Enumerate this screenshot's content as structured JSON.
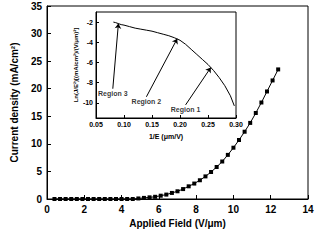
{
  "chart_data": [
    {
      "type": "line",
      "xlabel": "Applied Field (V/μm)",
      "ylabel": "Current density (mA/cm²)",
      "x": [
        0.4,
        0.7,
        1.0,
        1.3,
        1.6,
        1.9,
        2.2,
        2.5,
        2.8,
        3.1,
        3.4,
        3.7,
        4.0,
        4.3,
        4.6,
        4.9,
        5.2,
        5.5,
        5.8,
        6.1,
        6.4,
        6.7,
        7.0,
        7.3,
        7.6,
        7.9,
        8.2,
        8.5,
        8.8,
        9.1,
        9.4,
        9.7,
        10.0,
        10.3,
        10.6,
        10.9,
        11.2,
        11.5,
        11.8,
        12.1,
        12.4
      ],
      "values": [
        0,
        0,
        0,
        0,
        0,
        0,
        0,
        0,
        0,
        0,
        0,
        0,
        0,
        0,
        0,
        0.1,
        0.2,
        0.3,
        0.4,
        0.6,
        0.8,
        1.1,
        1.4,
        1.8,
        2.3,
        2.8,
        3.4,
        4.1,
        4.9,
        5.8,
        6.8,
        8.0,
        9.3,
        10.7,
        12.2,
        13.8,
        15.6,
        17.5,
        19.5,
        21.5,
        23.5
      ],
      "color": "#000000",
      "marker": "square",
      "xlim": [
        0,
        14
      ],
      "xticks": [
        0,
        2,
        4,
        6,
        8,
        10,
        12,
        14
      ],
      "ylim": [
        0,
        35
      ],
      "yticks": [
        0,
        5,
        10,
        15,
        20,
        25,
        30,
        35
      ],
      "grid": false
    },
    {
      "type": "line",
      "xlabel": "1/E (μm/V)",
      "ylabel": "Ln(J/E²)[(mA/cm²)/(V/μm)²]",
      "x": [
        0.081,
        0.085,
        0.09,
        0.095,
        0.1,
        0.11,
        0.12,
        0.13,
        0.14,
        0.15,
        0.16,
        0.17,
        0.18,
        0.19,
        0.2,
        0.21,
        0.22,
        0.23,
        0.24,
        0.25,
        0.26,
        0.27,
        0.28,
        0.29,
        0.297
      ],
      "values": [
        -2.0,
        -2.05,
        -2.15,
        -2.25,
        -2.3,
        -2.45,
        -2.6,
        -2.7,
        -2.8,
        -2.9,
        -3.05,
        -3.2,
        -3.35,
        -3.55,
        -3.8,
        -4.2,
        -4.7,
        -5.2,
        -5.7,
        -6.2,
        -6.8,
        -7.5,
        -8.3,
        -9.3,
        -10.3
      ],
      "color": "#000000",
      "marker": "none",
      "xlim": [
        0.05,
        0.3
      ],
      "xticks": [
        0.05,
        {
          "value": 0.1,
          "label": "0.10"
        },
        0.15,
        {
          "value": 0.2,
          "label": "0.20"
        },
        0.25,
        {
          "value": 0.3,
          "label": "0.30"
        }
      ],
      "ylim": [
        -11.5,
        -1
      ],
      "yticks": [
        -10,
        -8,
        -6,
        -4,
        -2
      ],
      "grid": false,
      "annotations": [
        {
          "text": "Region 3",
          "x": 0.08,
          "y": -8.6,
          "arrow_to": [
            0.09,
            -2.15
          ]
        },
        {
          "text": "Region 2",
          "x": 0.14,
          "y": -9.4,
          "arrow_to": [
            0.195,
            -3.65
          ]
        },
        {
          "text": "Region 1",
          "x": 0.21,
          "y": -10.2,
          "arrow_to": [
            0.255,
            -6.5
          ]
        }
      ]
    }
  ]
}
